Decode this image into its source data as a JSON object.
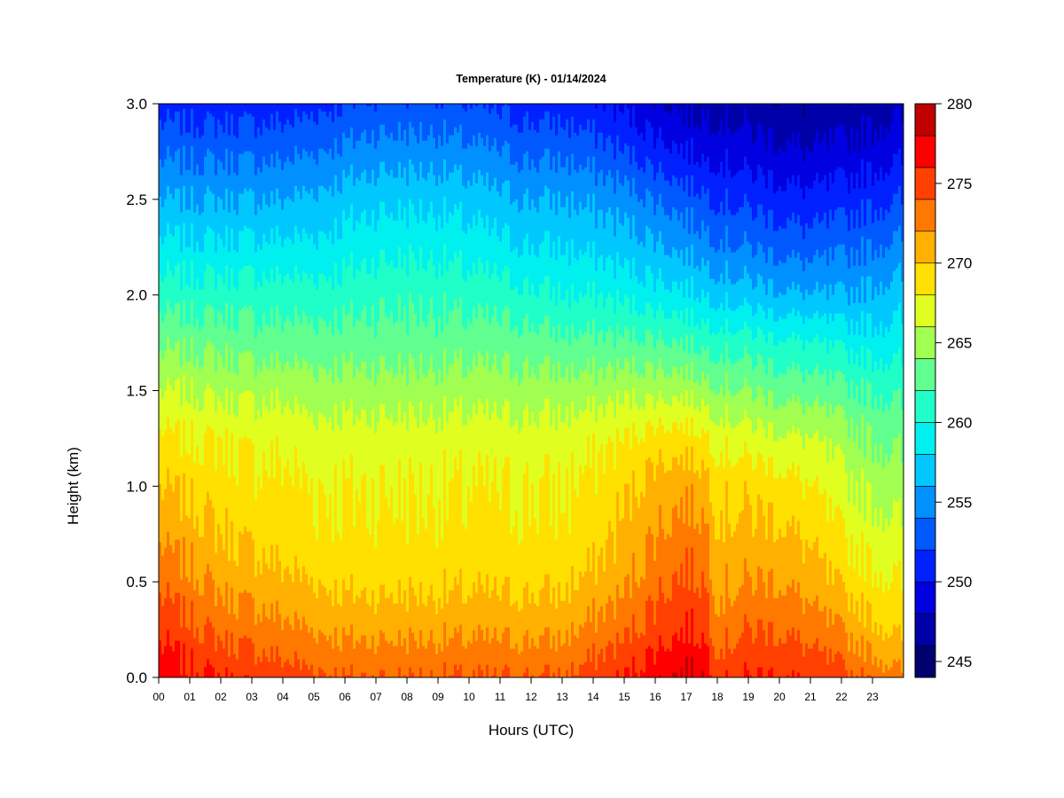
{
  "chart_data": {
    "type": "heatmap",
    "title": "Temperature (K) - 01/14/2024",
    "xlabel": "Hours (UTC)",
    "ylabel": "Height (km)",
    "xlim": [
      0,
      24
    ],
    "ylim": [
      0,
      3
    ],
    "x_ticks": [
      {
        "value": 0,
        "label": "00"
      },
      {
        "value": 1,
        "label": "01"
      },
      {
        "value": 2,
        "label": "02"
      },
      {
        "value": 3,
        "label": "03"
      },
      {
        "value": 4,
        "label": "04"
      },
      {
        "value": 5,
        "label": "05"
      },
      {
        "value": 6,
        "label": "06"
      },
      {
        "value": 7,
        "label": "07"
      },
      {
        "value": 8,
        "label": "08"
      },
      {
        "value": 9,
        "label": "09"
      },
      {
        "value": 10,
        "label": "10"
      },
      {
        "value": 11,
        "label": "11"
      },
      {
        "value": 12,
        "label": "12"
      },
      {
        "value": 13,
        "label": "13"
      },
      {
        "value": 14,
        "label": "14"
      },
      {
        "value": 15,
        "label": "15"
      },
      {
        "value": 16,
        "label": "16"
      },
      {
        "value": 17,
        "label": "17"
      },
      {
        "value": 18,
        "label": "18"
      },
      {
        "value": 19,
        "label": "19"
      },
      {
        "value": 20,
        "label": "20"
      },
      {
        "value": 21,
        "label": "21"
      },
      {
        "value": 22,
        "label": "22"
      },
      {
        "value": 23,
        "label": "23"
      }
    ],
    "y_ticks": [
      {
        "value": 0.0,
        "label": "0.0"
      },
      {
        "value": 0.5,
        "label": "0.5"
      },
      {
        "value": 1.0,
        "label": "1.0"
      },
      {
        "value": 1.5,
        "label": "1.5"
      },
      {
        "value": 2.0,
        "label": "2.0"
      },
      {
        "value": 2.5,
        "label": "2.5"
      },
      {
        "value": 3.0,
        "label": "3.0"
      }
    ],
    "colorbar": {
      "min": 244,
      "max": 280,
      "step": 2,
      "tick_values": [
        245,
        250,
        255,
        260,
        265,
        270,
        275,
        280
      ],
      "tick_labels": [
        "245",
        "250",
        "255",
        "260",
        "265",
        "270",
        "275",
        "280"
      ],
      "colors": [
        "#00006e",
        "#0000a8",
        "#0000e0",
        "#0020ff",
        "#0058ff",
        "#0090ff",
        "#00c8ff",
        "#00f0f0",
        "#20ffc8",
        "#60ff90",
        "#a0ff50",
        "#e0ff20",
        "#ffe000",
        "#ffb000",
        "#ff7800",
        "#ff4000",
        "#ff0000",
        "#c00000"
      ]
    },
    "height_levels_km": [
      0.0,
      0.25,
      0.5,
      0.75,
      1.0,
      1.25,
      1.5,
      1.75,
      2.0,
      2.25,
      2.5,
      2.75,
      3.0
    ],
    "hours_utc": [
      0,
      1,
      2,
      3,
      4,
      5,
      6,
      7,
      8,
      9,
      10,
      11,
      12,
      13,
      14,
      15,
      16,
      17,
      17.6,
      18,
      19,
      20,
      21,
      22,
      23,
      23.9
    ],
    "temperature_K": [
      [
        277.5,
        276.5,
        276.0,
        275.5,
        275.0,
        274.5,
        274.0,
        274.0,
        274.0,
        274.0,
        274.0,
        274.0,
        274.0,
        274.0,
        275.0,
        276.0,
        277.5,
        278.5,
        278.0,
        275.5,
        276.0,
        276.0,
        275.5,
        274.5,
        273.5,
        272.5
      ],
      [
        275.5,
        274.5,
        273.5,
        273.0,
        272.5,
        272.0,
        271.5,
        271.5,
        271.5,
        271.5,
        271.5,
        271.5,
        271.5,
        271.5,
        272.5,
        273.5,
        275.0,
        276.0,
        275.5,
        273.0,
        274.0,
        274.0,
        273.0,
        272.0,
        270.5,
        269.5
      ],
      [
        273.5,
        272.5,
        271.5,
        271.0,
        270.5,
        270.0,
        269.5,
        269.5,
        269.5,
        269.5,
        269.5,
        269.5,
        269.5,
        269.5,
        270.5,
        271.5,
        273.5,
        274.5,
        274.0,
        271.5,
        272.0,
        272.0,
        271.0,
        269.5,
        268.5,
        268.0
      ],
      [
        271.5,
        271.0,
        270.0,
        269.5,
        269.0,
        268.5,
        268.5,
        268.5,
        268.5,
        268.5,
        268.5,
        268.5,
        268.5,
        268.5,
        269.0,
        270.5,
        272.0,
        273.0,
        272.5,
        270.5,
        270.5,
        270.5,
        269.5,
        268.0,
        267.0,
        266.5
      ],
      [
        270.0,
        269.5,
        269.0,
        268.5,
        268.5,
        268.0,
        268.0,
        268.0,
        268.0,
        268.0,
        268.0,
        268.0,
        268.0,
        268.0,
        268.5,
        269.5,
        271.0,
        271.5,
        271.0,
        269.5,
        269.5,
        269.0,
        268.0,
        266.5,
        265.5,
        265.0
      ],
      [
        268.5,
        268.0,
        268.0,
        267.5,
        267.5,
        267.0,
        267.0,
        267.0,
        267.0,
        267.0,
        267.0,
        267.0,
        267.0,
        267.0,
        267.5,
        268.0,
        269.0,
        269.0,
        268.5,
        267.5,
        267.0,
        266.5,
        266.0,
        265.0,
        264.0,
        263.5
      ],
      [
        266.0,
        266.0,
        265.5,
        265.5,
        265.5,
        265.0,
        265.0,
        265.0,
        265.0,
        265.0,
        265.0,
        265.0,
        265.0,
        265.0,
        265.0,
        265.5,
        265.5,
        265.5,
        265.0,
        264.5,
        264.0,
        263.5,
        263.0,
        262.5,
        262.0,
        261.5
      ],
      [
        263.5,
        263.5,
        263.5,
        263.0,
        263.0,
        263.0,
        263.0,
        263.0,
        263.0,
        263.0,
        263.0,
        263.0,
        263.0,
        262.5,
        262.5,
        262.5,
        262.5,
        262.0,
        261.5,
        261.5,
        261.0,
        260.5,
        260.0,
        259.5,
        259.0,
        259.0
      ],
      [
        261.0,
        261.0,
        261.0,
        261.0,
        261.0,
        261.0,
        261.0,
        261.5,
        261.5,
        261.5,
        261.0,
        261.0,
        260.5,
        260.0,
        260.0,
        259.5,
        259.0,
        258.5,
        258.0,
        257.5,
        257.0,
        256.5,
        256.0,
        256.0,
        256.5,
        257.0
      ],
      [
        258.5,
        258.5,
        258.5,
        258.5,
        258.5,
        258.5,
        259.0,
        259.5,
        259.5,
        259.5,
        259.0,
        258.5,
        258.0,
        258.0,
        257.5,
        257.0,
        256.5,
        255.5,
        255.0,
        254.5,
        254.0,
        253.5,
        253.0,
        253.5,
        254.0,
        254.5
      ],
      [
        256.0,
        256.0,
        256.0,
        256.0,
        256.0,
        256.5,
        257.0,
        257.5,
        257.5,
        257.5,
        257.0,
        256.5,
        256.0,
        256.0,
        255.5,
        255.0,
        254.0,
        253.0,
        252.5,
        252.0,
        251.5,
        251.0,
        250.5,
        251.0,
        251.5,
        252.0
      ],
      [
        253.5,
        253.5,
        253.5,
        253.5,
        253.5,
        254.0,
        254.5,
        255.0,
        255.0,
        255.0,
        254.5,
        254.0,
        253.5,
        253.5,
        253.0,
        252.0,
        251.0,
        250.0,
        249.5,
        249.5,
        249.0,
        248.5,
        248.0,
        248.5,
        249.0,
        249.5
      ],
      [
        251.0,
        251.0,
        251.0,
        251.0,
        251.0,
        251.5,
        252.0,
        252.5,
        252.5,
        252.5,
        252.0,
        251.5,
        251.0,
        251.0,
        250.5,
        249.5,
        248.5,
        247.5,
        247.5,
        247.5,
        247.0,
        246.5,
        246.0,
        246.5,
        247.0,
        247.5
      ]
    ]
  }
}
